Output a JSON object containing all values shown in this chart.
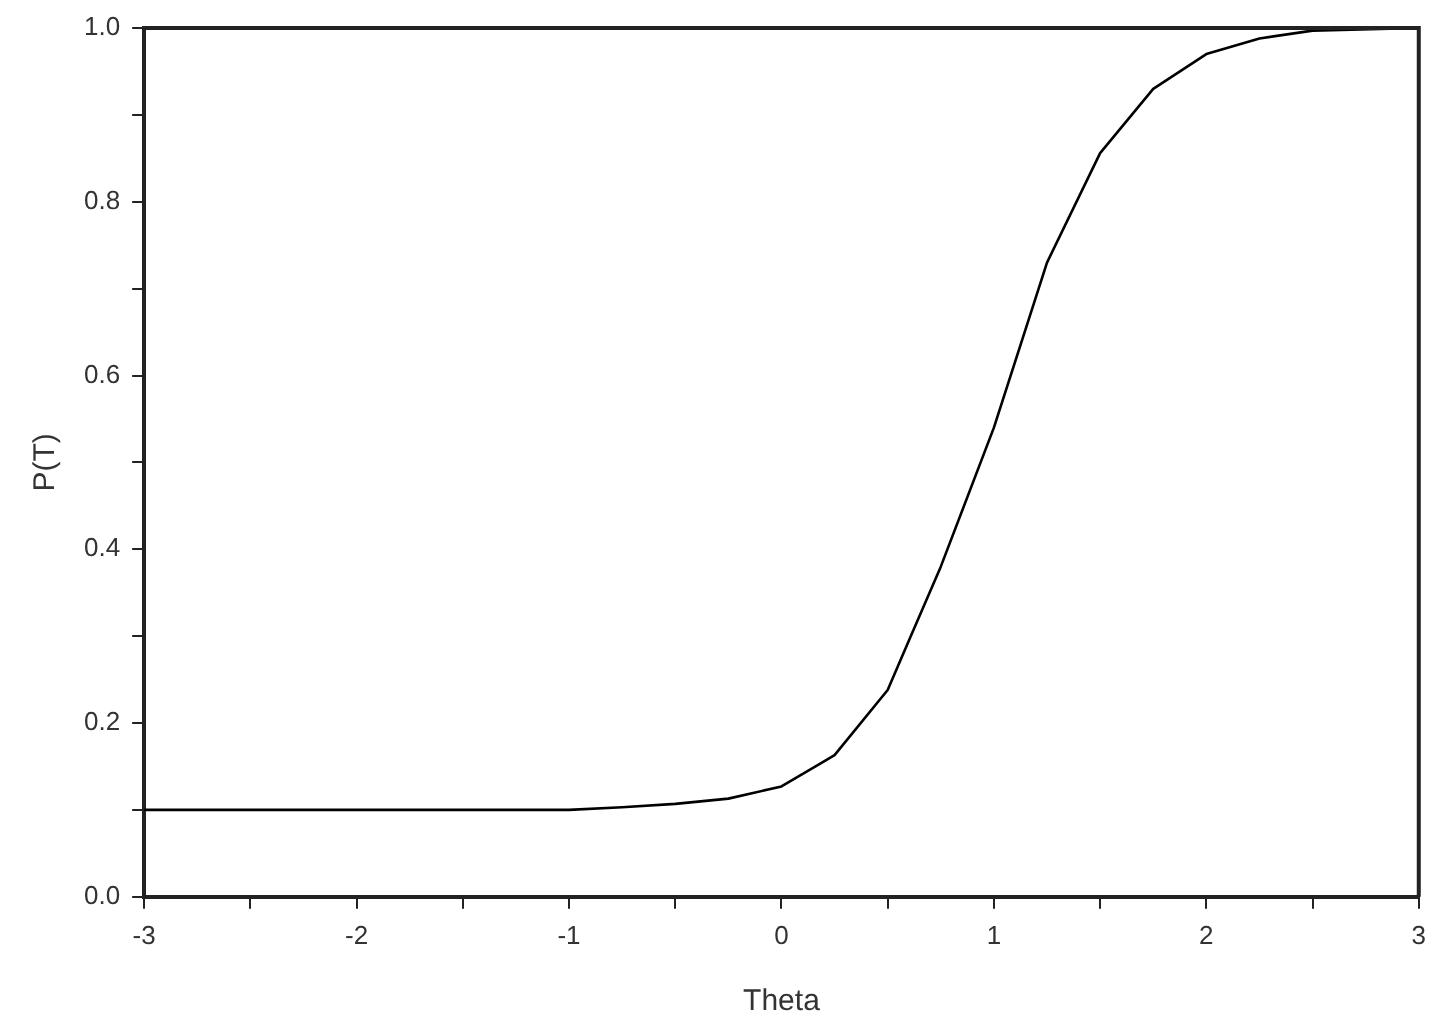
{
  "chart_data": {
    "type": "line",
    "xlabel": "Theta",
    "ylabel": "P(T)",
    "x": [
      -3,
      -2,
      -1.5,
      -1,
      -0.75,
      -0.5,
      -0.25,
      0,
      0.25,
      0.5,
      0.6,
      0.75,
      1,
      1.25,
      1.5,
      1.75,
      2,
      2.25,
      2.5,
      3
    ],
    "series": [
      {
        "color": "#000000",
        "values": [
          0.1,
          0.1,
          0.1,
          0.1,
          0.103,
          0.107,
          0.113,
          0.127,
          0.163,
          0.238,
          0.295,
          0.38,
          0.54,
          0.73,
          0.856,
          0.93,
          0.97,
          0.988,
          0.997,
          1.0
        ]
      }
    ],
    "xlim": [
      -3,
      3
    ],
    "ylim": [
      0,
      1
    ],
    "xticks": [
      -3,
      {
        "value": -2.5,
        "label": null
      },
      -2,
      {
        "value": -1.5,
        "label": null
      },
      -1,
      {
        "value": -0.5,
        "label": null
      },
      0,
      {
        "value": 0.5,
        "label": null
      },
      1,
      {
        "value": 1.5,
        "label": null
      },
      2,
      {
        "value": 2.5,
        "label": null
      },
      3
    ],
    "yticks": [
      {
        "value": 0,
        "label": "0.0"
      },
      {
        "value": 0.1,
        "label": null
      },
      0.2,
      {
        "value": 0.3,
        "label": null
      },
      0.4,
      {
        "value": 0.5,
        "label": null
      },
      0.6,
      {
        "value": 0.7,
        "label": null
      },
      0.8,
      {
        "value": 0.9,
        "label": null
      },
      {
        "value": 1,
        "label": "1.0"
      }
    ],
    "marker": "none",
    "line_style": "solid",
    "grid": false,
    "legend": false
  }
}
